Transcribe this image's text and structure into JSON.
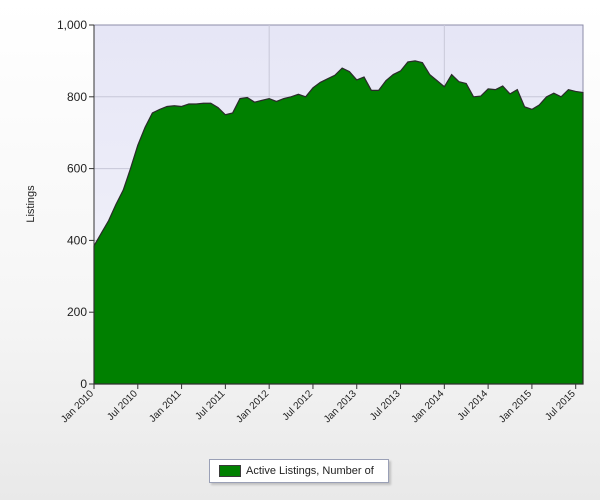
{
  "chart_data": {
    "type": "area",
    "ylabel": "Listings",
    "ylim": [
      0,
      1000
    ],
    "y_ticks": [
      "0",
      "200",
      "400",
      "600",
      "800",
      "1,000"
    ],
    "x_ticks": [
      "Jan 2010",
      "Jul 2010",
      "Jan 2011",
      "Jul 2011",
      "Jan 2012",
      "Jul 2012",
      "Jan 2013",
      "Jul 2013",
      "Jan 2014",
      "Jul 2014",
      "Jan 2015",
      "Jul 2015"
    ],
    "x_start": "Jan 2010",
    "x_end": "Aug 2015",
    "grid": true,
    "legend_position": "bottom",
    "series": [
      {
        "name": "Active Listings, Number of",
        "color": "#008000",
        "outline_color": "#2b2b2b",
        "values": [
          385,
          420,
          455,
          500,
          540,
          600,
          665,
          715,
          755,
          765,
          773,
          775,
          773,
          780,
          780,
          782,
          782,
          770,
          750,
          755,
          795,
          798,
          785,
          790,
          795,
          787,
          795,
          800,
          807,
          800,
          825,
          840,
          850,
          860,
          880,
          870,
          847,
          855,
          818,
          818,
          845,
          862,
          872,
          897,
          900,
          895,
          862,
          845,
          828,
          862,
          842,
          837,
          800,
          802,
          822,
          820,
          830,
          808,
          820,
          772,
          765,
          777,
          800,
          810,
          800,
          820,
          815,
          812
        ]
      }
    ]
  }
}
